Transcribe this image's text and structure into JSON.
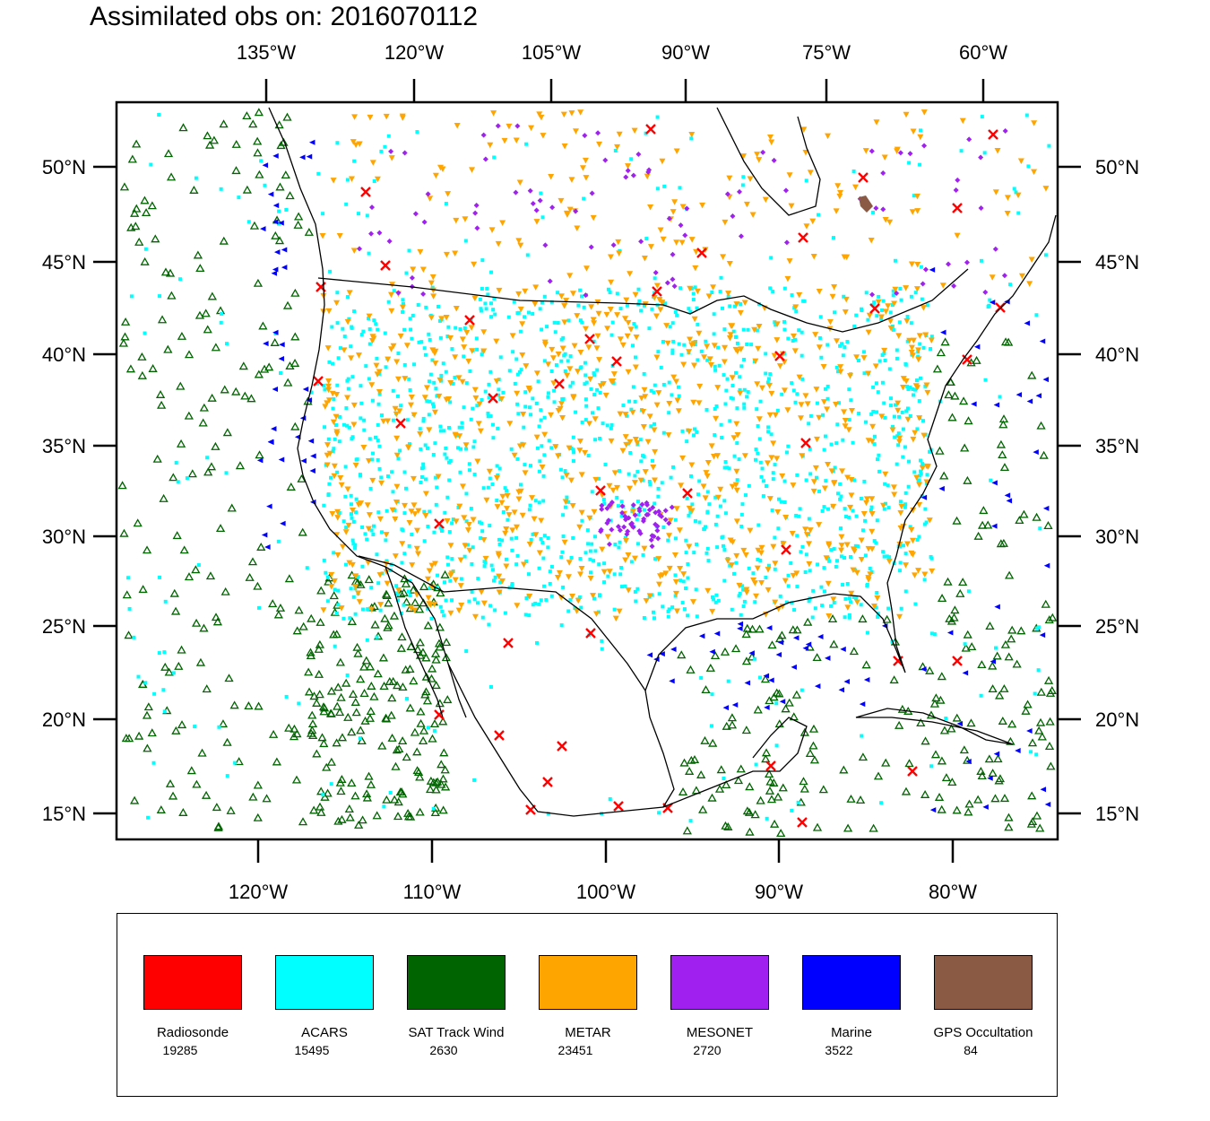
{
  "title": "Assimilated obs on: 2016070112",
  "top_lon_labels": [
    "135°W",
    "120°W",
    "105°W",
    "90°W",
    "75°W",
    "60°W"
  ],
  "bottom_lon_labels": [
    "120°W",
    "110°W",
    "100°W",
    "90°W",
    "80°W"
  ],
  "lat_labels": [
    "50°N",
    "45°N",
    "40°N",
    "35°N",
    "30°N",
    "25°N",
    "20°N",
    "15°N"
  ],
  "legend": [
    {
      "label": "Radiosonde",
      "count": "19285",
      "color": "#ff0000"
    },
    {
      "label": "ACARS",
      "count": "15495",
      "color": "#00ffff"
    },
    {
      "label": "SAT Track Wind",
      "count": "2630",
      "color": "#006400"
    },
    {
      "label": "METAR",
      "count": "23451",
      "color": "#ffa500"
    },
    {
      "label": "MESONET",
      "count": "2720",
      "color": "#a020f0"
    },
    {
      "label": "Marine",
      "count": "3522",
      "color": "#0000ff"
    },
    {
      "label": "GPS Occultation",
      "count": "84",
      "color": "#8b5a44"
    }
  ]
}
